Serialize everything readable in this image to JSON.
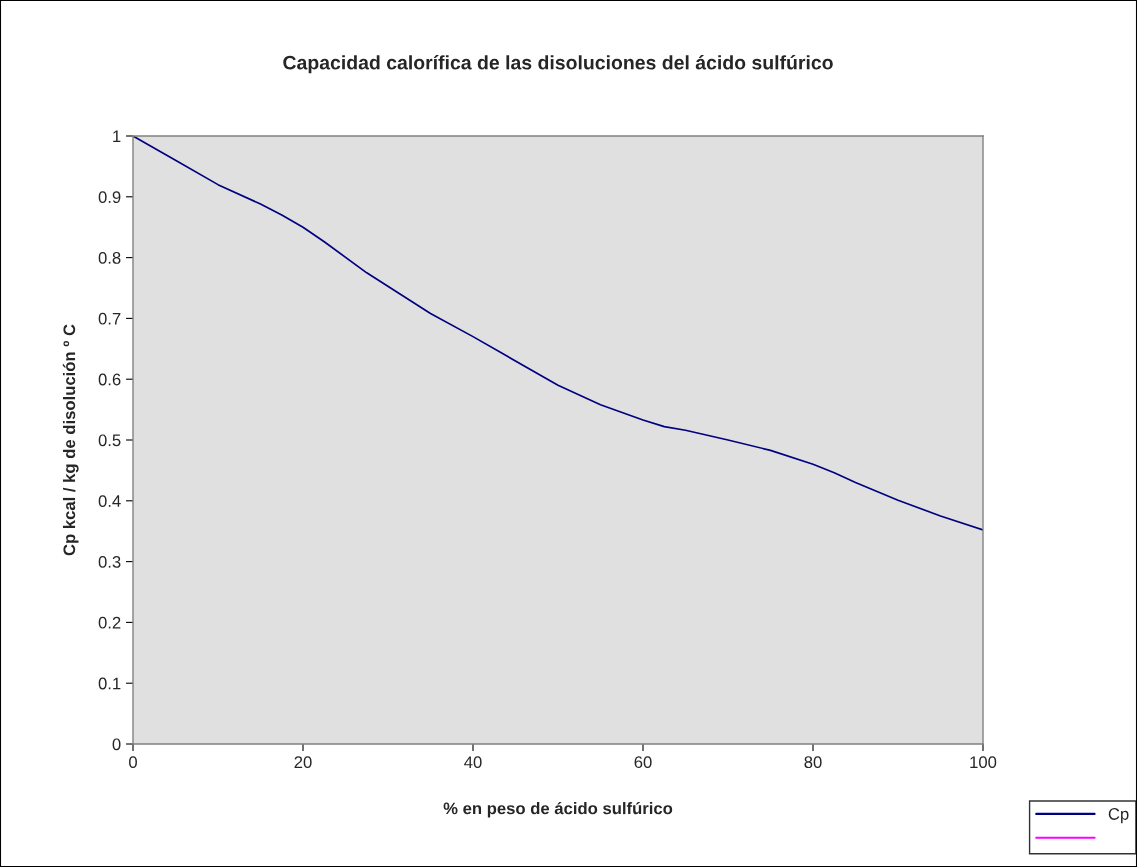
{
  "chart_data": {
    "type": "line",
    "title": "Capacidad calorífica de las disoluciones del ácido sulfúrico",
    "xlabel": "% en peso de ácido sulfúrico",
    "ylabel": "Cp kcal / kg de disolución º C",
    "x": [
      0,
      5,
      10,
      15,
      17.5,
      20,
      22.5,
      27.5,
      35,
      40,
      50,
      55,
      60,
      62.5,
      65,
      70,
      75,
      80,
      82.5,
      85,
      90,
      95,
      100
    ],
    "series": [
      {
        "name": "Cp",
        "color": "#000080",
        "values": [
          1.0,
          0.96,
          0.92,
          0.888,
          0.87,
          0.85,
          0.826,
          0.775,
          0.708,
          0.67,
          0.59,
          0.558,
          0.533,
          0.522,
          0.516,
          0.5,
          0.483,
          0.46,
          0.446,
          0.43,
          0.401,
          0.375,
          0.352
        ]
      },
      {
        "color": "#ff00ff",
        "values": [
          null,
          null,
          null,
          null,
          null,
          null,
          null,
          null,
          null,
          null,
          null,
          null,
          null,
          null,
          null,
          null,
          null,
          null,
          null,
          null,
          null,
          null,
          null
        ]
      }
    ],
    "xlim": [
      0,
      100
    ],
    "xticks": [
      0,
      20,
      40,
      60,
      80,
      100
    ],
    "ylim": [
      0,
      1
    ],
    "yticks": [
      0,
      0.1,
      0.2,
      0.3,
      0.4,
      0.5,
      0.6,
      0.7,
      0.8,
      0.9,
      1
    ],
    "grid": false,
    "legend": "bottom right",
    "marker": "none",
    "line_style": "solid"
  }
}
